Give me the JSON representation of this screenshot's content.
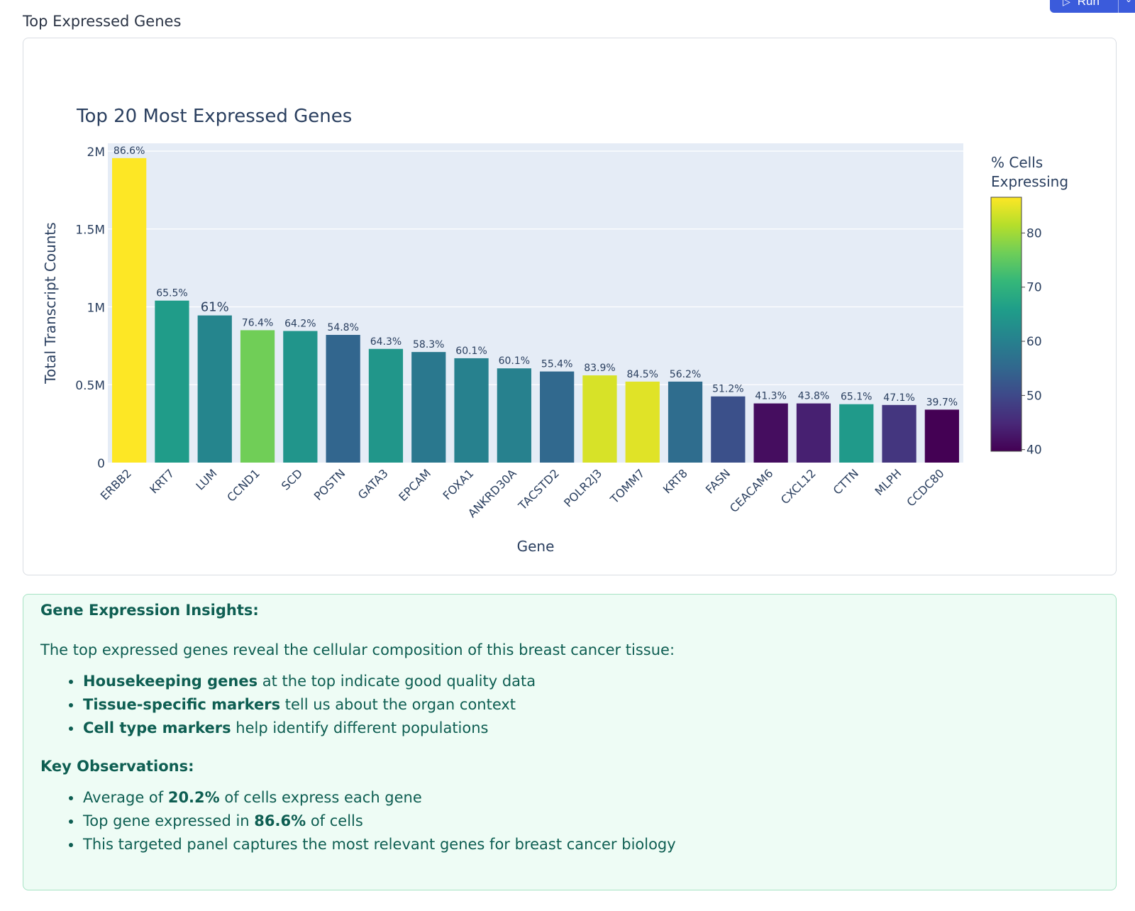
{
  "section": {
    "title": "Top Expressed Genes",
    "run_label": "Run"
  },
  "chart_data": {
    "type": "bar",
    "title": "Top 20 Most Expressed Genes",
    "xlabel": "Gene",
    "ylabel": "Total Transcript Counts",
    "ylim": [
      0,
      2050000
    ],
    "yticks": [
      0,
      500000,
      1000000,
      1500000,
      2000000
    ],
    "ytick_labels": [
      "0",
      "0.5M",
      "1M",
      "1.5M",
      "2M"
    ],
    "categories": [
      "ERBB2",
      "KRT7",
      "LUM",
      "CCND1",
      "SCD",
      "POSTN",
      "GATA3",
      "EPCAM",
      "FOXA1",
      "ANKRD30A",
      "TACSTD2",
      "POLR2J3",
      "TOMM7",
      "KRT8",
      "FASN",
      "CEACAM6",
      "CXCL12",
      "CTTN",
      "MLPH",
      "CCDC80"
    ],
    "values": [
      1955000,
      1040000,
      945000,
      850000,
      845000,
      820000,
      730000,
      710000,
      670000,
      605000,
      585000,
      560000,
      520000,
      520000,
      425000,
      380000,
      380000,
      375000,
      370000,
      340000
    ],
    "pct_values": [
      86.6,
      65.5,
      61,
      76.4,
      64.2,
      54.8,
      64.3,
      58.3,
      60.1,
      60.1,
      55.4,
      83.9,
      84.5,
      56.2,
      51.2,
      41.3,
      43.8,
      65.1,
      47.1,
      39.7
    ],
    "data_labels": [
      "86.6%",
      "65.5%",
      "61%",
      "76.4%",
      "64.2%",
      "54.8%",
      "64.3%",
      "58.3%",
      "60.1%",
      "60.1%",
      "55.4%",
      "83.9%",
      "84.5%",
      "56.2%",
      "51.2%",
      "41.3%",
      "43.8%",
      "65.1%",
      "47.1%",
      "39.7%"
    ],
    "colorbar": {
      "title_line1": "% Cells",
      "title_line2": "Expressing",
      "range": [
        39.7,
        86.6
      ],
      "ticks": [
        40,
        50,
        60,
        70,
        80
      ],
      "tick_labels": [
        "40",
        "50",
        "60",
        "70",
        "80"
      ],
      "colorscale": "Viridis"
    }
  },
  "insights": {
    "heading": "Gene Expression Insights:",
    "intro": "The top expressed genes reveal the cellular composition of this breast cancer tissue:",
    "items": [
      {
        "bold": "Housekeeping genes",
        "rest": " at the top indicate good quality data"
      },
      {
        "bold": "Tissue-specific markers",
        "rest": " tell us about the organ context"
      },
      {
        "bold": "Cell type markers",
        "rest": " help identify different populations"
      }
    ],
    "obs_heading": "Key Observations:",
    "observations": [
      {
        "pre": "Average of ",
        "bold": "20.2%",
        "post": " of cells express each gene"
      },
      {
        "pre": "Top gene expressed in ",
        "bold": "86.6%",
        "post": " of cells"
      },
      {
        "pre": "This targeted panel captures the most relevant genes for breast cancer biology",
        "bold": "",
        "post": ""
      }
    ]
  }
}
